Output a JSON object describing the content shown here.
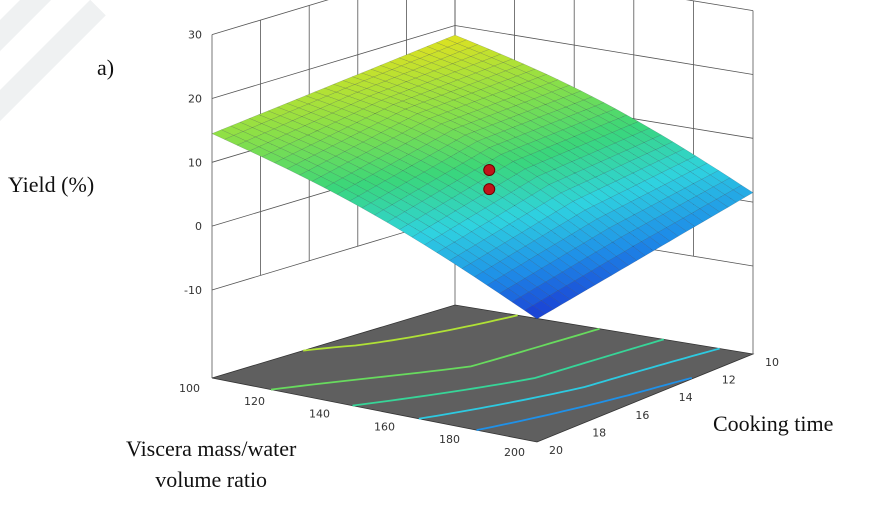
{
  "panel_label": "a)",
  "chart_data": {
    "type": "surface3d",
    "zlabel": "Yield (%)",
    "xlabel_lines": [
      "Viscera mass/water",
      "volume ratio"
    ],
    "ylabel": "Cooking time",
    "x": [
      100,
      120,
      140,
      160,
      180,
      200
    ],
    "y": [
      10,
      12,
      14,
      16,
      18,
      20
    ],
    "zlim": [
      -10,
      30
    ],
    "z_ticks": [
      "30",
      "20",
      "10",
      "0",
      "-10"
    ],
    "x_ticks": [
      "100",
      "120",
      "140",
      "160",
      "180",
      "200"
    ],
    "y_ticks": [
      "10",
      "12",
      "14",
      "16",
      "18",
      "20"
    ],
    "surface_corners": [
      {
        "x": 100,
        "y": 10,
        "yield": 18.5
      },
      {
        "x": 200,
        "y": 10,
        "yield": 1.5
      },
      {
        "x": 100,
        "y": 20,
        "yield": 14.5
      },
      {
        "x": 200,
        "y": 20,
        "yield": -4.5
      }
    ],
    "design_points": [
      {
        "x": 150,
        "y": 15,
        "yield": 7.5
      },
      {
        "x": 150,
        "y": 15,
        "yield": 4.5
      }
    ],
    "colormap": [
      "#1a2fd0",
      "#1e8ee8",
      "#2fd3e0",
      "#3ad67a",
      "#8ee046",
      "#e9e21c"
    ],
    "contour_floor_color": "#5f5f5f",
    "grid": true
  }
}
